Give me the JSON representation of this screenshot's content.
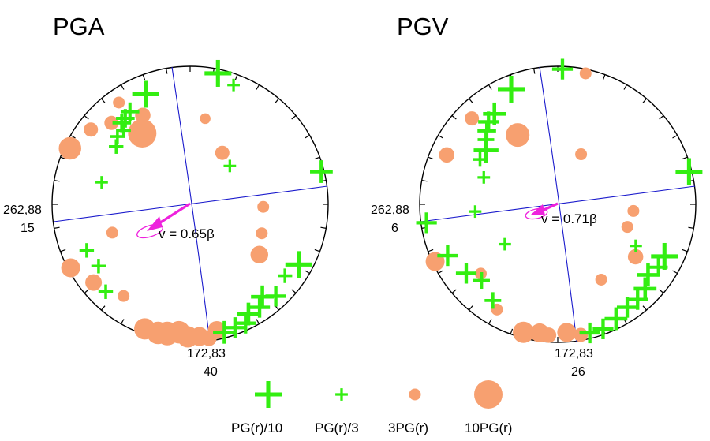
{
  "colors": {
    "plus_marker": "#33ee11",
    "dot_marker": "#f7a070",
    "nodal_plane": "#1a1acc",
    "velocity_arrow": "#ee22dd",
    "frame": "#000000"
  },
  "chart_data": [
    {
      "type": "scatter",
      "title": "PGA",
      "projection": "lower-hemisphere stereonet",
      "plane_labels": [
        {
          "strike_dip": "262,88",
          "value": "15"
        },
        {
          "strike_dip": "172,83",
          "value": "40"
        }
      ],
      "rupture_velocity": {
        "label": "v = 0.65β",
        "ratio": 0.65
      },
      "points": [
        {
          "az": 12,
          "r": 0.97,
          "kind": "plus",
          "size": 1.0
        },
        {
          "az": 338,
          "r": 0.86,
          "kind": "plus",
          "size": 1.0
        },
        {
          "az": 327,
          "r": 0.8,
          "kind": "plus",
          "size": 0.6
        },
        {
          "az": 323,
          "r": 0.78,
          "kind": "plus",
          "size": 0.6
        },
        {
          "az": 320,
          "r": 0.77,
          "kind": "plus",
          "size": 0.6
        },
        {
          "az": 318,
          "r": 0.72,
          "kind": "plus",
          "size": 0.4
        },
        {
          "az": 313,
          "r": 0.72,
          "kind": "plus",
          "size": 0.4
        },
        {
          "az": 308,
          "r": 0.68,
          "kind": "plus",
          "size": 0.4
        },
        {
          "az": 76,
          "r": 0.98,
          "kind": "plus",
          "size": 0.8
        },
        {
          "az": 119,
          "r": 0.9,
          "kind": "plus",
          "size": 1.0
        },
        {
          "az": 127,
          "r": 0.86,
          "kind": "plus",
          "size": 0.4
        },
        {
          "az": 137,
          "r": 0.91,
          "kind": "plus",
          "size": 0.7
        },
        {
          "az": 142,
          "r": 0.85,
          "kind": "plus",
          "size": 0.8
        },
        {
          "az": 146,
          "r": 0.9,
          "kind": "plus",
          "size": 0.7
        },
        {
          "az": 152,
          "r": 0.9,
          "kind": "plus",
          "size": 0.8
        },
        {
          "az": 155,
          "r": 0.95,
          "kind": "plus",
          "size": 0.7
        },
        {
          "az": 160,
          "r": 0.95,
          "kind": "plus",
          "size": 0.7
        },
        {
          "az": 165,
          "r": 0.96,
          "kind": "plus",
          "size": 0.8
        },
        {
          "az": 246,
          "r": 0.82,
          "kind": "plus",
          "size": 0.4
        },
        {
          "az": 236,
          "r": 0.8,
          "kind": "plus",
          "size": 0.4
        },
        {
          "az": 224,
          "r": 0.88,
          "kind": "plus",
          "size": 0.4
        },
        {
          "az": 46,
          "r": 0.4,
          "kind": "plus",
          "size": 0.3
        },
        {
          "az": 284,
          "r": 0.66,
          "kind": "plus",
          "size": 0.3
        },
        {
          "az": 20,
          "r": 0.92,
          "kind": "plus",
          "size": 0.3
        },
        {
          "az": 326,
          "r": 0.62,
          "kind": "dot",
          "size": 1.0
        },
        {
          "az": 295,
          "r": 0.96,
          "kind": "dot",
          "size": 0.75
        },
        {
          "az": 242,
          "r": 0.98,
          "kind": "dot",
          "size": 0.6
        },
        {
          "az": 307,
          "r": 0.9,
          "kind": "dot",
          "size": 0.4
        },
        {
          "az": 316,
          "r": 0.82,
          "kind": "dot",
          "size": 0.4
        },
        {
          "az": 325,
          "r": 0.9,
          "kind": "dot",
          "size": 0.3
        },
        {
          "az": 332,
          "r": 0.73,
          "kind": "dot",
          "size": 0.45
        },
        {
          "az": 32,
          "r": 0.44,
          "kind": "dot",
          "size": 0.4
        },
        {
          "az": 92,
          "r": 0.53,
          "kind": "dot",
          "size": 0.3
        },
        {
          "az": 126,
          "r": 0.62,
          "kind": "dot",
          "size": 0.55
        },
        {
          "az": 112,
          "r": 0.56,
          "kind": "dot",
          "size": 0.3
        },
        {
          "az": 250,
          "r": 0.6,
          "kind": "dot",
          "size": 0.3
        },
        {
          "az": 231,
          "r": 0.9,
          "kind": "dot",
          "size": 0.5
        },
        {
          "az": 216,
          "r": 0.82,
          "kind": "dot",
          "size": 0.3
        },
        {
          "az": 200,
          "r": 0.96,
          "kind": "dot",
          "size": 0.7
        },
        {
          "az": 194,
          "r": 0.96,
          "kind": "dot",
          "size": 0.75
        },
        {
          "az": 190,
          "r": 0.95,
          "kind": "dot",
          "size": 0.8
        },
        {
          "az": 185,
          "r": 0.93,
          "kind": "dot",
          "size": 0.75
        },
        {
          "az": 181,
          "r": 0.96,
          "kind": "dot",
          "size": 0.7
        },
        {
          "az": 176,
          "r": 0.96,
          "kind": "dot",
          "size": 0.6
        },
        {
          "az": 168,
          "r": 0.93,
          "kind": "dot",
          "size": 0.55
        },
        {
          "az": 172,
          "r": 0.98,
          "kind": "dot",
          "size": 0.45
        },
        {
          "az": 10,
          "r": 0.63,
          "kind": "dot",
          "size": 0.25
        }
      ]
    },
    {
      "type": "scatter",
      "title": "PGV",
      "projection": "lower-hemisphere stereonet",
      "plane_labels": [
        {
          "strike_dip": "262,88",
          "value": "6"
        },
        {
          "strike_dip": "172,83",
          "value": "26"
        }
      ],
      "rupture_velocity": {
        "label": "v = 0.71β",
        "ratio": 0.71
      },
      "points": [
        {
          "az": 2,
          "r": 0.98,
          "kind": "plus",
          "size": 0.7
        },
        {
          "az": 338,
          "r": 0.9,
          "kind": "plus",
          "size": 1.0
        },
        {
          "az": 325,
          "r": 0.8,
          "kind": "plus",
          "size": 0.8
        },
        {
          "az": 320,
          "r": 0.78,
          "kind": "plus",
          "size": 0.7
        },
        {
          "az": 316,
          "r": 0.74,
          "kind": "plus",
          "size": 0.6
        },
        {
          "az": 312,
          "r": 0.7,
          "kind": "plus",
          "size": 0.5
        },
        {
          "az": 307,
          "r": 0.65,
          "kind": "plus",
          "size": 0.9
        },
        {
          "az": 300,
          "r": 0.65,
          "kind": "plus",
          "size": 0.4
        },
        {
          "az": 76,
          "r": 0.98,
          "kind": "plus",
          "size": 1.0
        },
        {
          "az": 116,
          "r": 0.86,
          "kind": "plus",
          "size": 1.0
        },
        {
          "az": 122,
          "r": 0.86,
          "kind": "plus",
          "size": 0.6
        },
        {
          "az": 128,
          "r": 0.83,
          "kind": "plus",
          "size": 0.8
        },
        {
          "az": 134,
          "r": 0.88,
          "kind": "plus",
          "size": 0.8
        },
        {
          "az": 140,
          "r": 0.9,
          "kind": "plus",
          "size": 0.7
        },
        {
          "az": 146,
          "r": 0.9,
          "kind": "plus",
          "size": 0.7
        },
        {
          "az": 153,
          "r": 0.93,
          "kind": "plus",
          "size": 0.8
        },
        {
          "az": 160,
          "r": 0.96,
          "kind": "plus",
          "size": 0.7
        },
        {
          "az": 166,
          "r": 0.96,
          "kind": "plus",
          "size": 0.7
        },
        {
          "az": 262,
          "r": 0.96,
          "kind": "plus",
          "size": 0.7
        },
        {
          "az": 245,
          "r": 0.88,
          "kind": "plus",
          "size": 0.7
        },
        {
          "az": 233,
          "r": 0.83,
          "kind": "plus",
          "size": 0.7
        },
        {
          "az": 225,
          "r": 0.78,
          "kind": "plus",
          "size": 0.5
        },
        {
          "az": 214,
          "r": 0.84,
          "kind": "plus",
          "size": 0.5
        },
        {
          "az": 290,
          "r": 0.57,
          "kind": "plus",
          "size": 0.3
        },
        {
          "az": 233,
          "r": 0.48,
          "kind": "plus",
          "size": 0.3
        },
        {
          "az": 118,
          "r": 0.64,
          "kind": "plus",
          "size": 0.3
        },
        {
          "az": 265,
          "r": 0.6,
          "kind": "plus",
          "size": 0.3
        },
        {
          "az": 330,
          "r": 0.58,
          "kind": "dot",
          "size": 0.8
        },
        {
          "az": 294,
          "r": 0.88,
          "kind": "dot",
          "size": 0.45
        },
        {
          "az": 245,
          "r": 0.98,
          "kind": "dot",
          "size": 0.6
        },
        {
          "az": 315,
          "r": 0.88,
          "kind": "dot",
          "size": 0.4
        },
        {
          "az": 12,
          "r": 0.97,
          "kind": "dot",
          "size": 0.3
        },
        {
          "az": 25,
          "r": 0.4,
          "kind": "dot",
          "size": 0.3
        },
        {
          "az": 95,
          "r": 0.55,
          "kind": "dot",
          "size": 0.3
        },
        {
          "az": 124,
          "r": 0.68,
          "kind": "dot",
          "size": 0.45
        },
        {
          "az": 108,
          "r": 0.53,
          "kind": "dot",
          "size": 0.3
        },
        {
          "az": 150,
          "r": 0.63,
          "kind": "dot",
          "size": 0.3
        },
        {
          "az": 195,
          "r": 0.96,
          "kind": "dot",
          "size": 0.7
        },
        {
          "az": 188,
          "r": 0.94,
          "kind": "dot",
          "size": 0.6
        },
        {
          "az": 184,
          "r": 0.95,
          "kind": "dot",
          "size": 0.45
        },
        {
          "az": 176,
          "r": 0.93,
          "kind": "dot",
          "size": 0.6
        },
        {
          "az": 170,
          "r": 0.96,
          "kind": "dot",
          "size": 0.4
        },
        {
          "az": 210,
          "r": 0.88,
          "kind": "dot",
          "size": 0.3
        },
        {
          "az": 228,
          "r": 0.75,
          "kind": "dot",
          "size": 0.3
        }
      ]
    }
  ],
  "legend": {
    "items": [
      {
        "kind": "plus",
        "size": 1.0,
        "label": "PG(r)/10"
      },
      {
        "kind": "plus",
        "size": 0.3,
        "label": "PG(r)/3"
      },
      {
        "kind": "dot",
        "size": 0.3,
        "label": "3PG(r)"
      },
      {
        "kind": "dot",
        "size": 1.0,
        "label": "10PG(r)"
      }
    ]
  }
}
